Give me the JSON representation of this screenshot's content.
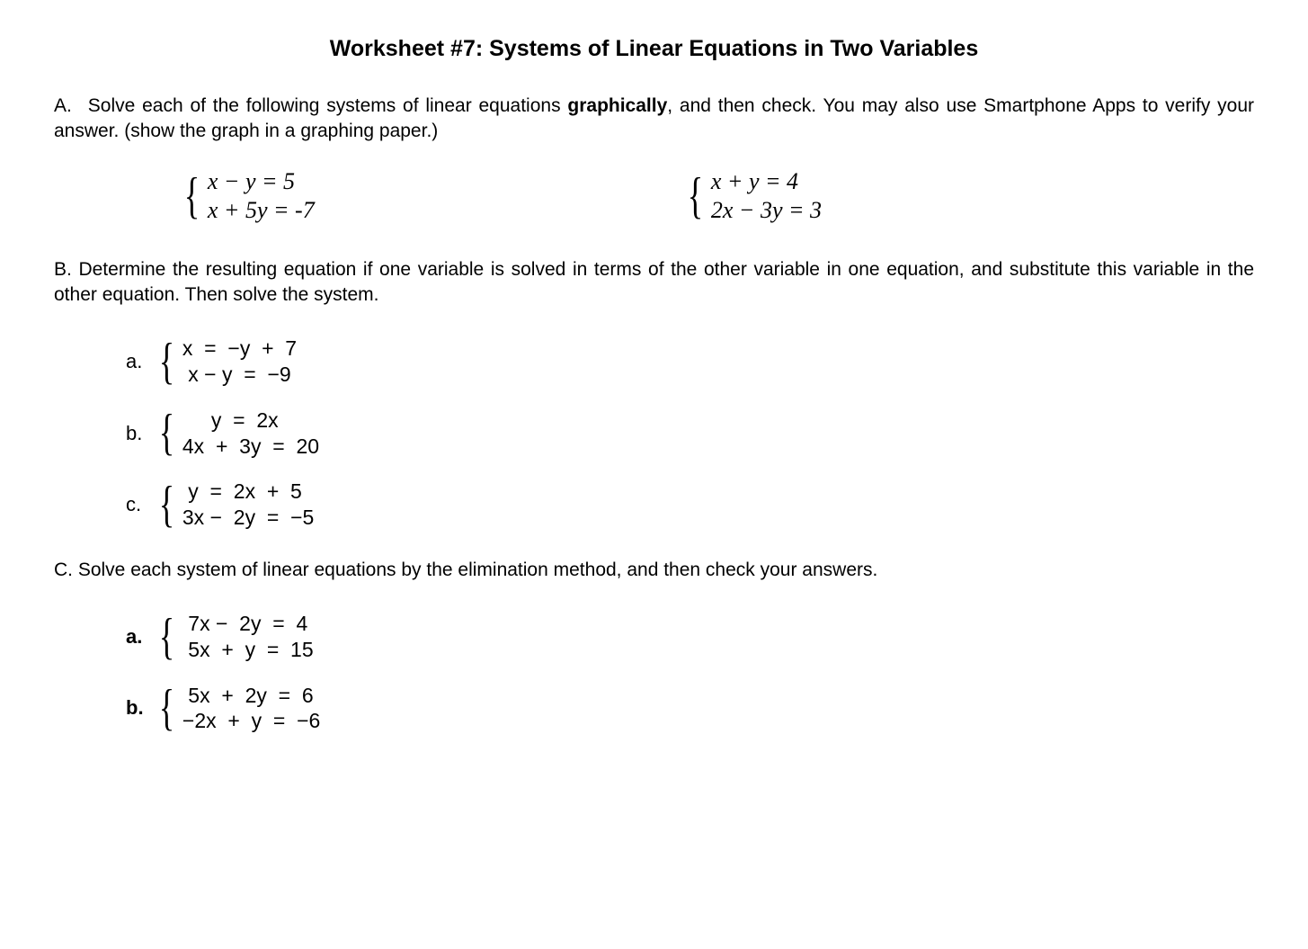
{
  "title": "Worksheet #7: Systems of Linear Equations in Two Variables",
  "sectionA": {
    "lead": "A.",
    "text_before_bold": "Solve each of the following systems of linear equations ",
    "bold_word": "graphically",
    "text_after_bold": ", and then check. You may also use Smartphone Apps to verify your answer. (show the graph in a graphing paper.)",
    "system1": {
      "eq1": "x − y = 5",
      "eq2": "x + 5y = -7"
    },
    "system2": {
      "eq1": "x + y = 4",
      "eq2": "2x − 3y = 3"
    }
  },
  "sectionB": {
    "text": "B. Determine the resulting equation if one variable is solved in terms of the other variable in one equation, and substitute this variable in the other equation. Then solve the system.",
    "problems": [
      {
        "label": "a.",
        "eq1": "x  =  −y  +  7",
        "eq2": " x − y  =  −9"
      },
      {
        "label": "b.",
        "eq1": "     y  =  2x",
        "eq2": "4x  +  3y  =  20"
      },
      {
        "label": "c.",
        "eq1": " y  =  2x  +  5",
        "eq2": "3x −  2y  =  −5"
      }
    ]
  },
  "sectionC": {
    "text": "C. Solve each system of linear equations by the elimination method, and then check your answers.",
    "problems": [
      {
        "label": "a.",
        "eq1": " 7x −  2y  =  4",
        "eq2": " 5x  +  y  =  15"
      },
      {
        "label": "b.",
        "eq1": " 5x  +  2y  =  6",
        "eq2": "−2x  +  y  =  −6"
      }
    ]
  }
}
